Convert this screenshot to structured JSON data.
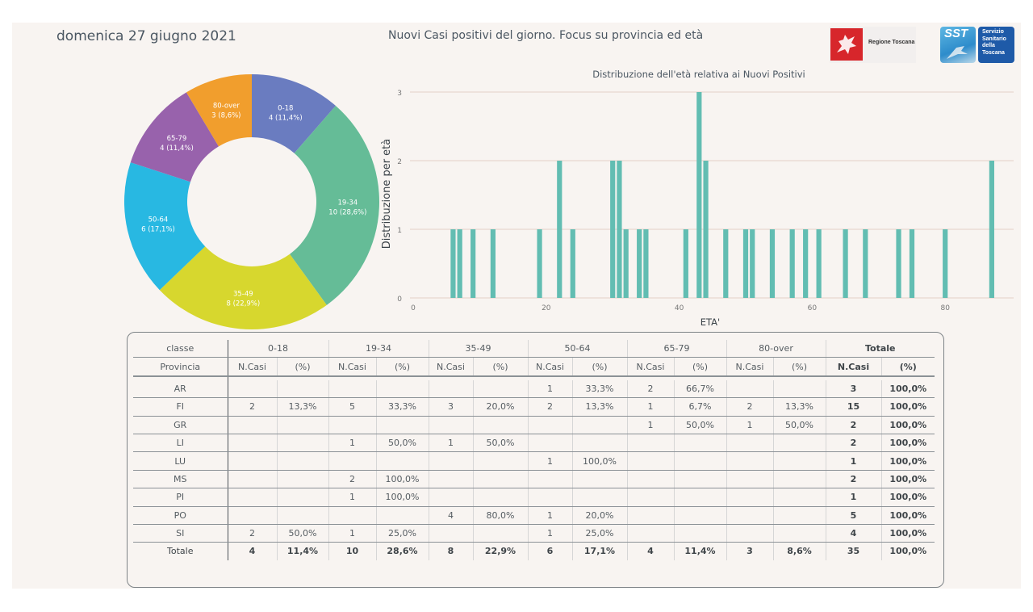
{
  "header": {
    "date": "domenica 27 giugno 2021",
    "title": "Nuovi Casi positivi del giorno. Focus su provincia ed età",
    "logos": [
      {
        "name": "regione-toscana-logo",
        "label": "Regione Toscana",
        "icon": "pegasus-icon",
        "color": "#d7262b"
      },
      {
        "name": "sst-logo",
        "label": "SST",
        "box_lines": [
          "Servizio",
          "Sanitario",
          "della",
          "Toscana"
        ],
        "color": "#1e5aa8"
      }
    ]
  },
  "chart_data": [
    {
      "type": "pie",
      "variant": "donut",
      "categories": [
        "0-18",
        "19-34",
        "35-49",
        "50-64",
        "65-79",
        "80-over"
      ],
      "values": [
        4,
        10,
        8,
        6,
        4,
        3
      ],
      "percent_labels": [
        "11,4%",
        "28,6%",
        "22,9%",
        "17,1%",
        "11,4%",
        "8,6%"
      ],
      "colors": [
        "#6a7cc0",
        "#65bc97",
        "#d7d72e",
        "#28b8e2",
        "#9862ac",
        "#f19e2d"
      ],
      "title": ""
    },
    {
      "type": "bar",
      "title": "Distribuzione dell'età relativa ai Nuovi Positivi",
      "xlabel": "ETA'",
      "ylabel": "Distribuzione per età",
      "x": [
        6,
        7,
        9,
        12,
        19,
        22,
        24,
        30,
        31,
        32,
        34,
        35,
        41,
        43,
        44,
        47,
        50,
        51,
        54,
        57,
        59,
        61,
        65,
        68,
        73,
        75,
        80,
        87
      ],
      "values": [
        1,
        1,
        1,
        1,
        1,
        2,
        1,
        2,
        2,
        1,
        1,
        1,
        1,
        3,
        2,
        1,
        1,
        1,
        1,
        1,
        1,
        1,
        1,
        1,
        1,
        1,
        1,
        2
      ],
      "xticks": [
        0,
        20,
        40,
        60,
        80
      ],
      "yticks": [
        0,
        1,
        2,
        3
      ],
      "xlim": [
        0,
        90
      ],
      "ylim": [
        0,
        3
      ],
      "grid": "horizontal",
      "bar_color": "#62bdb2"
    },
    {
      "type": "table",
      "header_row1": {
        "classe": "classe",
        "groups": [
          "0-18",
          "19-34",
          "35-49",
          "50-64",
          "65-79",
          "80-over"
        ],
        "total": "Totale"
      },
      "header_row2": {
        "provincia": "Provincia",
        "ncasi": "N.Casi",
        "pct": "(%)"
      },
      "rows": [
        {
          "provincia": "AR",
          "cells": [
            "",
            "",
            "",
            "",
            "",
            "",
            "1",
            "33,3%",
            "2",
            "66,7%",
            "",
            ""
          ],
          "tot_n": "3",
          "tot_pct": "100,0%"
        },
        {
          "provincia": "FI",
          "cells": [
            "2",
            "13,3%",
            "5",
            "33,3%",
            "3",
            "20,0%",
            "2",
            "13,3%",
            "1",
            "6,7%",
            "2",
            "13,3%"
          ],
          "tot_n": "15",
          "tot_pct": "100,0%"
        },
        {
          "provincia": "GR",
          "cells": [
            "",
            "",
            "",
            "",
            "",
            "",
            "",
            "",
            "1",
            "50,0%",
            "1",
            "50,0%"
          ],
          "tot_n": "2",
          "tot_pct": "100,0%"
        },
        {
          "provincia": "LI",
          "cells": [
            "",
            "",
            "1",
            "50,0%",
            "1",
            "50,0%",
            "",
            "",
            "",
            "",
            "",
            ""
          ],
          "tot_n": "2",
          "tot_pct": "100,0%"
        },
        {
          "provincia": "LU",
          "cells": [
            "",
            "",
            "",
            "",
            "",
            "",
            "1",
            "100,0%",
            "",
            "",
            "",
            ""
          ],
          "tot_n": "1",
          "tot_pct": "100,0%"
        },
        {
          "provincia": "MS",
          "cells": [
            "",
            "",
            "2",
            "100,0%",
            "",
            "",
            "",
            "",
            "",
            "",
            "",
            ""
          ],
          "tot_n": "2",
          "tot_pct": "100,0%"
        },
        {
          "provincia": "PI",
          "cells": [
            "",
            "",
            "1",
            "100,0%",
            "",
            "",
            "",
            "",
            "",
            "",
            "",
            ""
          ],
          "tot_n": "1",
          "tot_pct": "100,0%"
        },
        {
          "provincia": "PO",
          "cells": [
            "",
            "",
            "",
            "",
            "4",
            "80,0%",
            "1",
            "20,0%",
            "",
            "",
            "",
            ""
          ],
          "tot_n": "5",
          "tot_pct": "100,0%"
        },
        {
          "provincia": "SI",
          "cells": [
            "2",
            "50,0%",
            "1",
            "25,0%",
            "",
            "",
            "1",
            "25,0%",
            "",
            "",
            "",
            ""
          ],
          "tot_n": "4",
          "tot_pct": "100,0%"
        }
      ],
      "total_row": {
        "label": "Totale",
        "cells": [
          "4",
          "11,4%",
          "10",
          "28,6%",
          "8",
          "22,9%",
          "6",
          "17,1%",
          "4",
          "11,4%",
          "3",
          "8,6%"
        ],
        "tot_n": "35",
        "tot_pct": "100,0%"
      }
    }
  ]
}
